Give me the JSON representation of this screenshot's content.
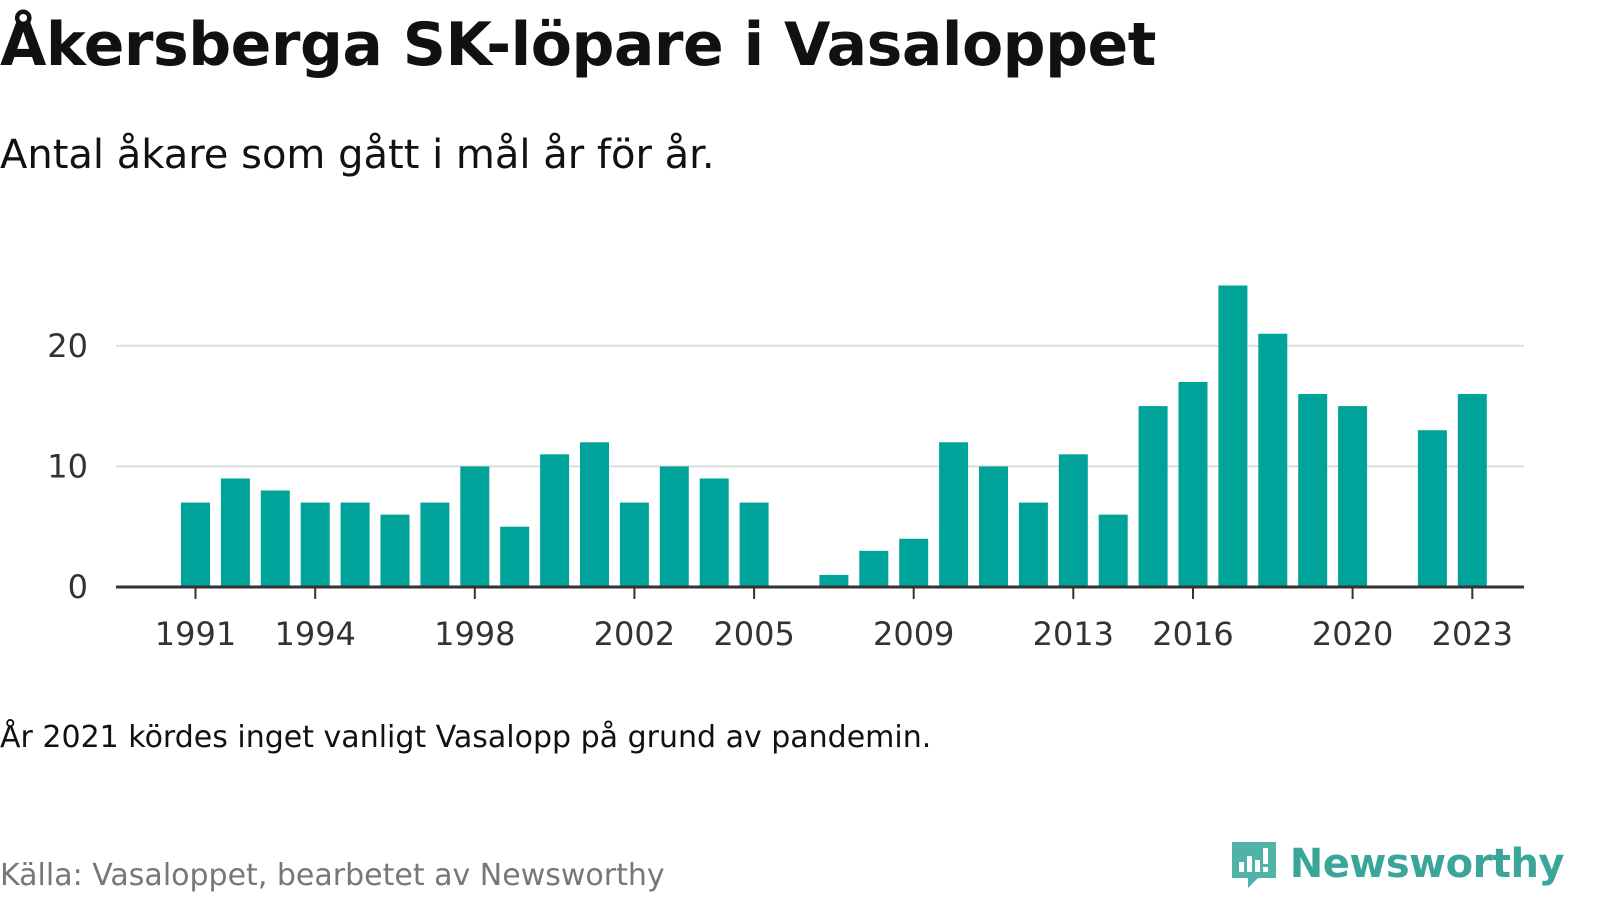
{
  "title": "Åkersberga SK-löpare i Vasaloppet",
  "subtitle": "Antal åkare som gått i mål år för år.",
  "note": "År 2021 kördes inget vanligt Vasalopp på grund av pandemin.",
  "source": "Källa: Vasaloppet, bearbetet av Newsworthy",
  "brand": {
    "name": "Newsworthy",
    "icon": "newsworthy-logo-icon",
    "color": "#3aa69a"
  },
  "colors": {
    "bar": "#00a39a",
    "grid": "#dddddd",
    "axis": "#333333"
  },
  "chart_data": {
    "type": "bar",
    "title": "",
    "xlabel": "",
    "ylabel": "",
    "categories": [
      1991,
      1992,
      1993,
      1994,
      1995,
      1996,
      1997,
      1998,
      1999,
      2000,
      2001,
      2002,
      2003,
      2004,
      2005,
      2006,
      2007,
      2008,
      2009,
      2010,
      2011,
      2012,
      2013,
      2014,
      2015,
      2016,
      2017,
      2018,
      2019,
      2020,
      2021,
      2022,
      2023
    ],
    "values": [
      7,
      9,
      8,
      7,
      7,
      6,
      7,
      10,
      5,
      11,
      12,
      7,
      10,
      9,
      7,
      0,
      1,
      3,
      4,
      12,
      10,
      7,
      11,
      6,
      15,
      17,
      25,
      21,
      16,
      15,
      null,
      13,
      16
    ],
    "ylim": [
      0,
      25
    ],
    "yticks": [
      0,
      10,
      20
    ],
    "xtick_labels": [
      "1991",
      "1994",
      "1998",
      "2002",
      "2005",
      "2009",
      "2013",
      "2016",
      "2020",
      "2023"
    ],
    "grid": true,
    "legend": "none"
  }
}
